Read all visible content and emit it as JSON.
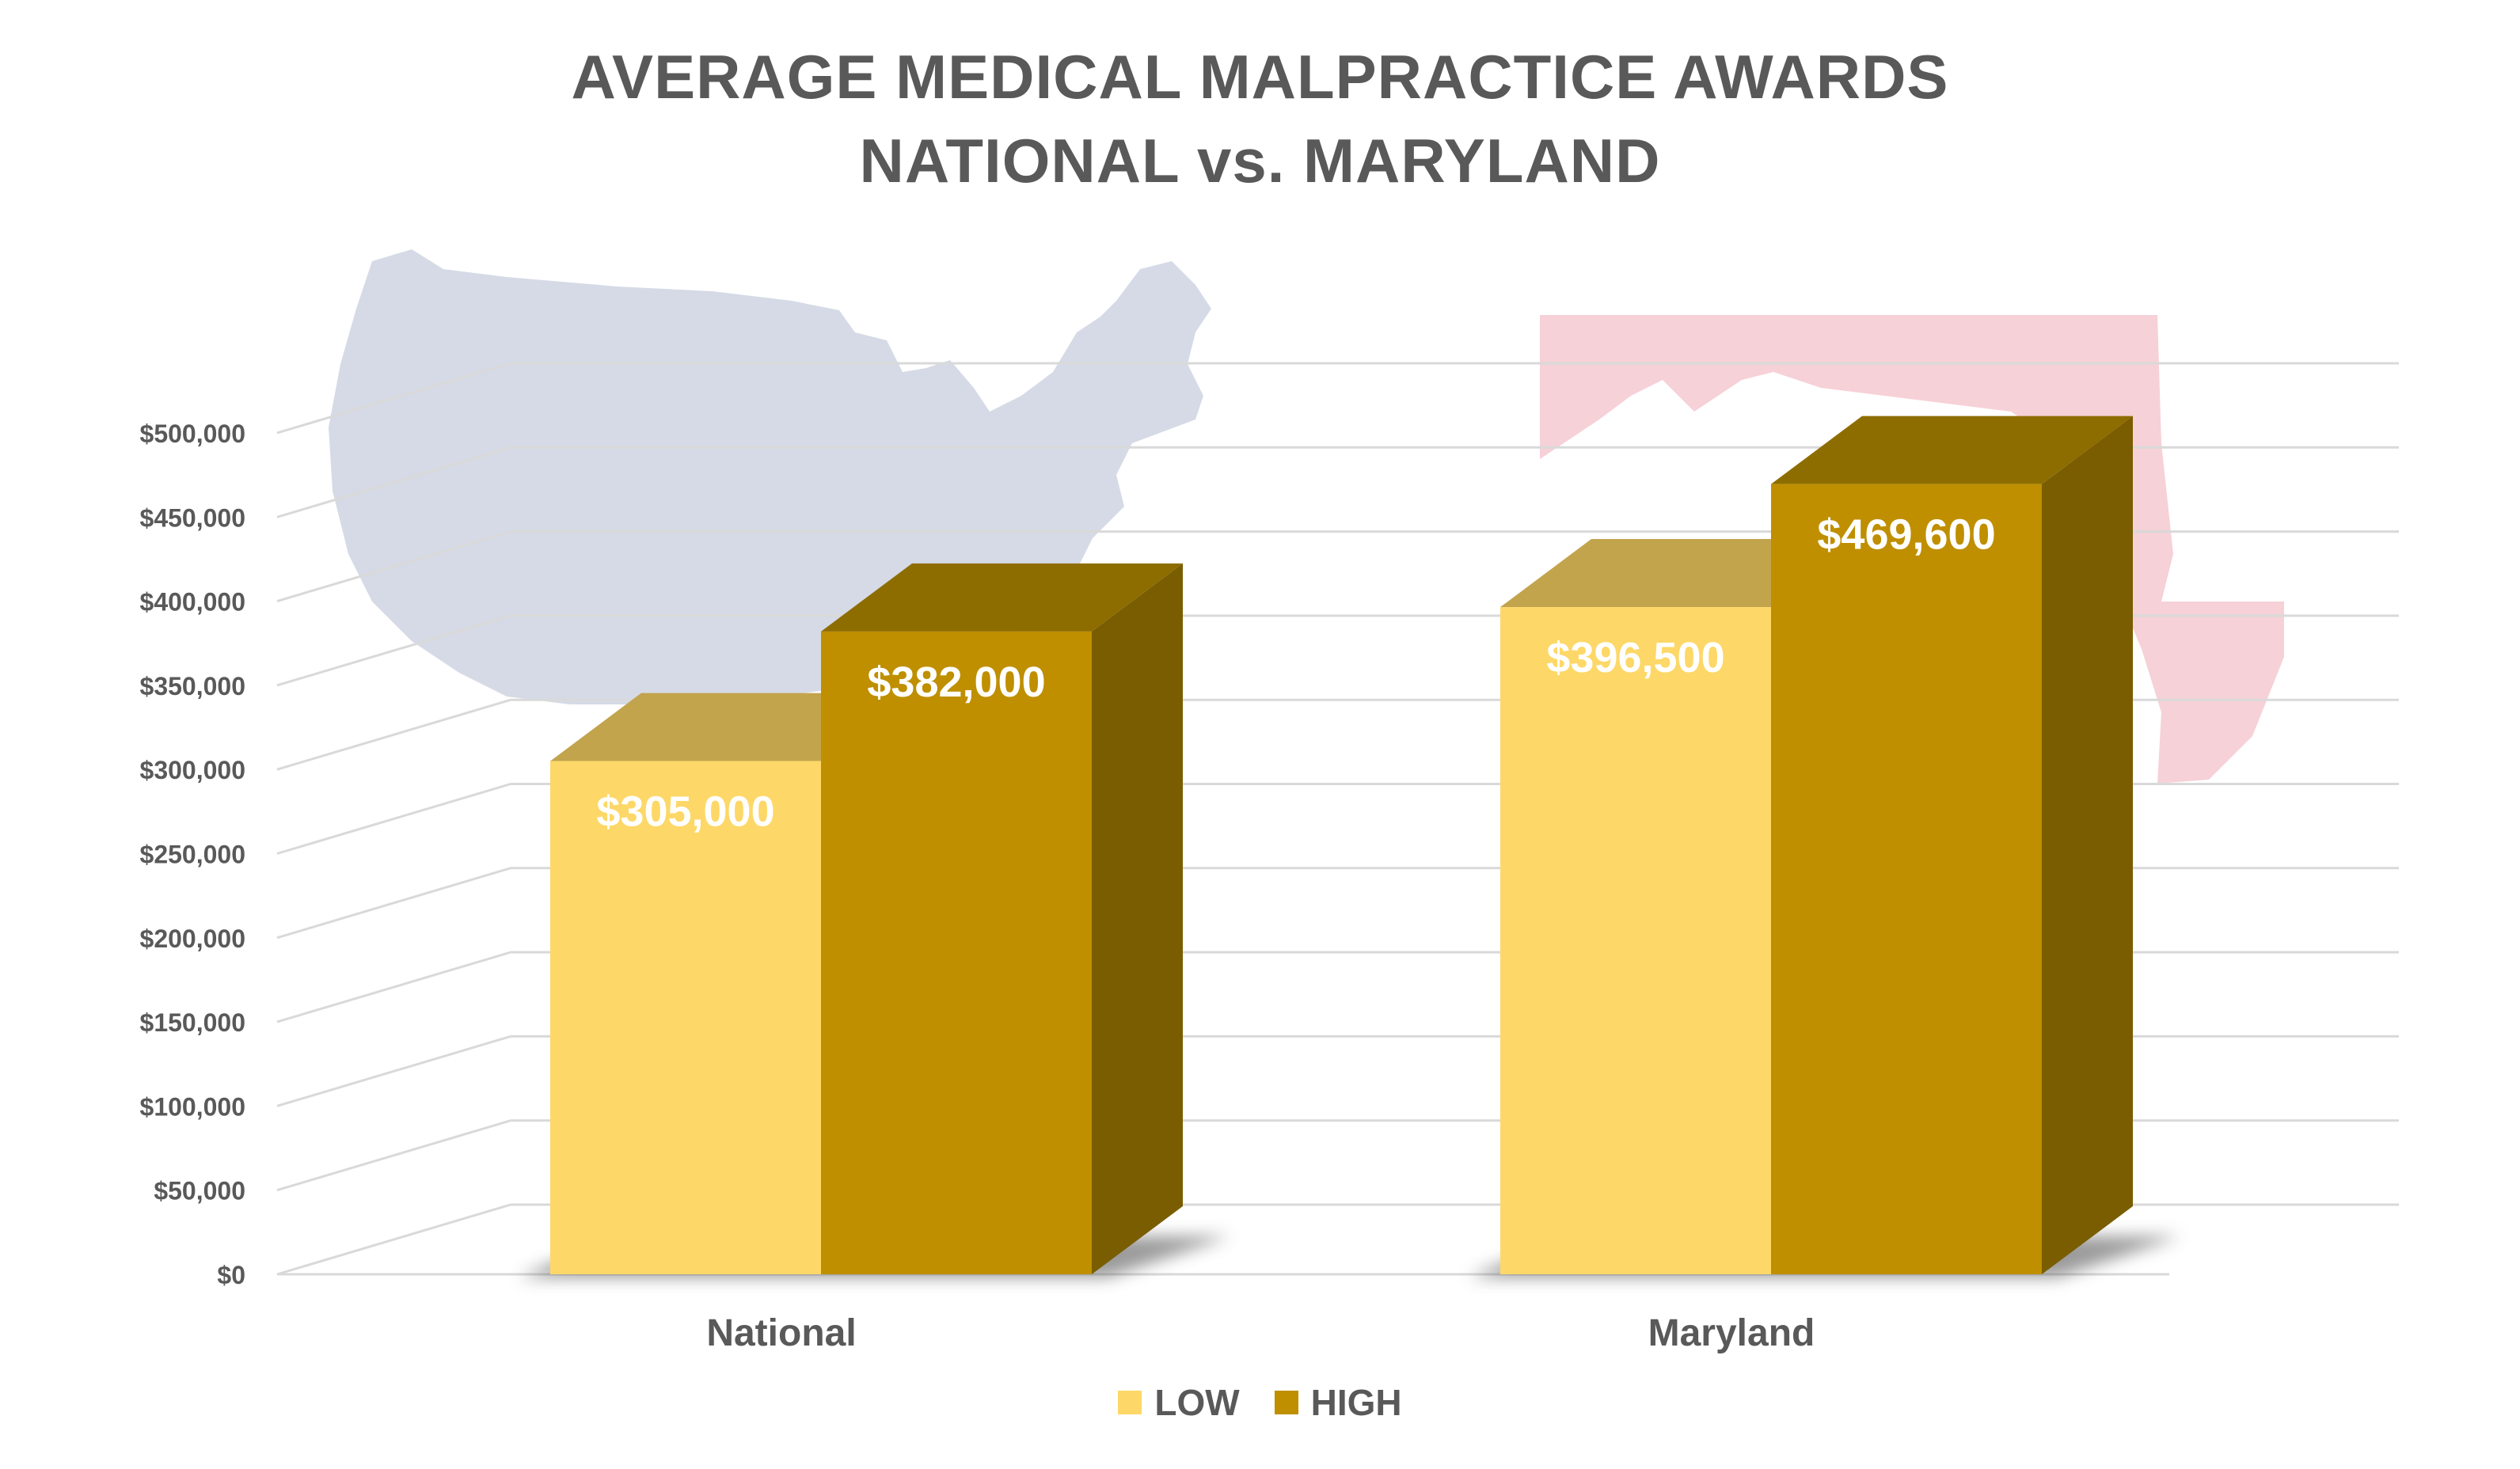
{
  "title_line1": "AVERAGE MEDICAL MALPRACTICE AWARDS",
  "title_line2": "NATIONAL vs. MARYLAND",
  "colors": {
    "low": "#FDD868",
    "low_top": "#C2A44D",
    "high": "#BF8F00",
    "high_top": "#8E6D00",
    "high_side": "#7A5D00",
    "grid": "#D9D9D9",
    "text": "#595959",
    "us_map": "#D5DAE6",
    "md_map": "#F6D1D7"
  },
  "chart_data": {
    "type": "bar",
    "title": "AVERAGE MEDICAL MALPRACTICE AWARDS NATIONAL vs. MARYLAND",
    "categories": [
      "National",
      "Maryland"
    ],
    "series": [
      {
        "name": "LOW",
        "values": [
          305000,
          396500
        ]
      },
      {
        "name": "HIGH",
        "values": [
          382000,
          469600
        ]
      }
    ],
    "data_labels": [
      [
        "$305,000",
        "$396,500"
      ],
      [
        "$382,000",
        "$469,600"
      ]
    ],
    "ylim": [
      0,
      500000
    ],
    "y_ticks": [
      0,
      50000,
      100000,
      150000,
      200000,
      250000,
      300000,
      350000,
      400000,
      450000,
      500000
    ],
    "y_tick_labels": [
      "$0",
      "$50,000",
      "$100,000",
      "$150,000",
      "$200,000",
      "$250,000",
      "$300,000",
      "$350,000",
      "$400,000",
      "$450,000",
      "$500,000"
    ],
    "grid": true,
    "style": "3d",
    "legend_position": "bottom"
  },
  "legend": [
    {
      "label": "LOW"
    },
    {
      "label": "HIGH"
    }
  ]
}
